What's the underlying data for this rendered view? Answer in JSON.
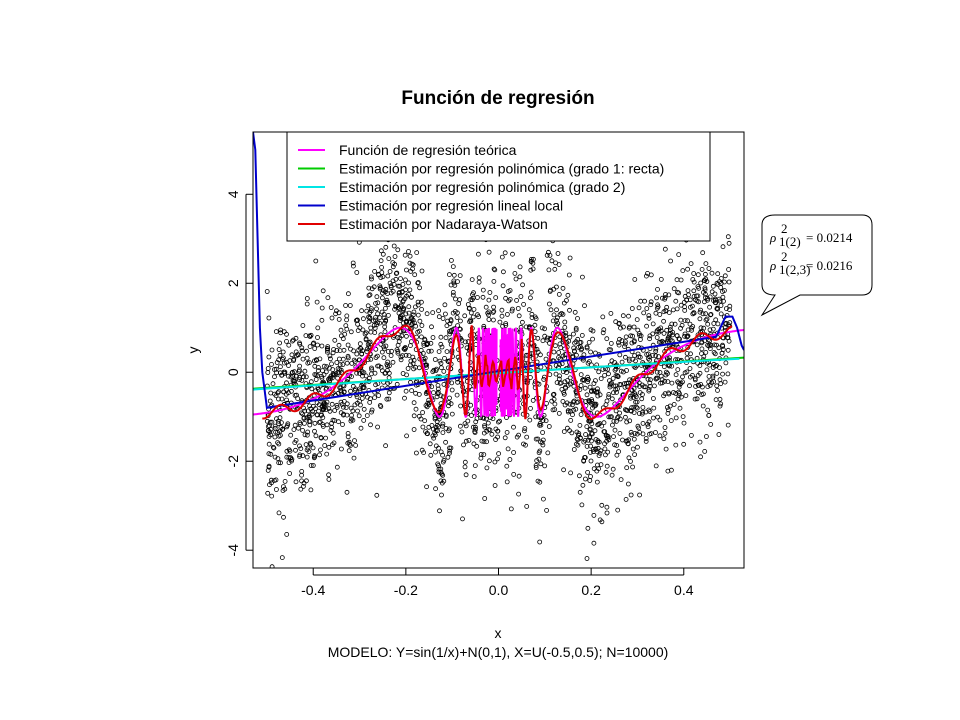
{
  "chart_data": {
    "type": "scatter",
    "title": "Función de regresión",
    "xlabel": "x",
    "ylabel": "y",
    "subtitle": "MODELO: Y=sin(1/x)+N(0,1), X=U(-0.5,0.5);  N=10000)",
    "xlim": [
      -0.53,
      0.53
    ],
    "ylim": [
      -4.4,
      5.4
    ],
    "xticks": [
      -0.4,
      -0.2,
      0.0,
      0.2,
      0.4
    ],
    "xtick_labels": [
      "-0.4",
      "-0.2",
      "0.0",
      "0.2",
      "0.4"
    ],
    "yticks": [
      -4,
      -2,
      0,
      2,
      4
    ],
    "ytick_labels": [
      "-4",
      "-2",
      "0",
      "2",
      "4"
    ],
    "grid": false,
    "legend_position": "top",
    "points_count": 10000,
    "points_domain": [
      -0.5,
      0.5
    ],
    "series": [
      {
        "name": "Función de regresión teórica",
        "color": "#ff00ff",
        "kind": "theoretical_sin_inv_x"
      },
      {
        "name": "Estimación por regresión polinómica (grado 1: recta)",
        "color": "#00cc00",
        "kind": "linear",
        "x": [
          -0.53,
          0.53
        ],
        "y": [
          -0.37,
          0.33
        ]
      },
      {
        "name": "Estimación por regresión polinómica (grado 2)",
        "color": "#00e5e5",
        "kind": "quadratic",
        "x": [
          -0.53,
          0.0,
          0.53
        ],
        "y": [
          -0.39,
          -0.02,
          0.31
        ]
      },
      {
        "name": "Estimación por regresión lineal local",
        "color": "#0000cc",
        "kind": "local_linear",
        "x": [
          -0.53,
          -0.525,
          -0.52,
          -0.515,
          -0.51,
          -0.505,
          -0.5,
          0.47,
          0.49,
          0.505,
          0.515,
          0.525,
          0.53
        ],
        "y": [
          5.4,
          5.0,
          3.0,
          1.0,
          0.0,
          -0.4,
          -0.8,
          0.8,
          1.25,
          1.25,
          1.0,
          0.6,
          0.5
        ]
      },
      {
        "name": "Estimación por Nadaraya-Watson",
        "color": "#e00000",
        "kind": "nadaraya_watson"
      }
    ],
    "annotations": [
      {
        "symbol": "ρ",
        "superscript": "2",
        "subscript": "1(2)",
        "value": "= 0.0214"
      },
      {
        "symbol": "ρ",
        "superscript": "2",
        "subscript": "1(2,3)",
        "value": "= 0.0216"
      }
    ]
  }
}
